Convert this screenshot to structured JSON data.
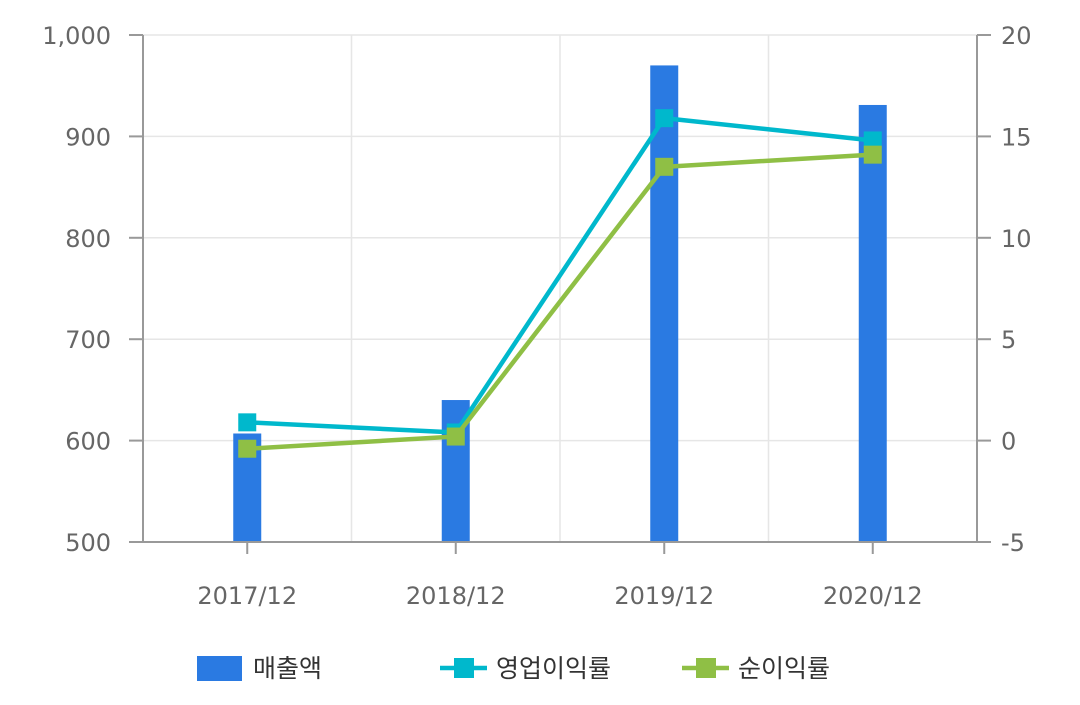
{
  "chart_data": {
    "type": "bar",
    "categories": [
      "2017/12",
      "2018/12",
      "2019/12",
      "2020/12"
    ],
    "series": [
      {
        "name": "매출액",
        "type": "bar",
        "axis": "left",
        "color": "#2a7ae2",
        "values": [
          607,
          640,
          970,
          931
        ]
      },
      {
        "name": "영업이익률",
        "type": "line",
        "axis": "right",
        "color": "#00b8cc",
        "values": [
          0.9,
          0.4,
          15.9,
          14.8
        ]
      },
      {
        "name": "순이익률",
        "type": "line",
        "axis": "right",
        "color": "#8fbf45",
        "values": [
          -0.4,
          0.2,
          13.5,
          14.1
        ]
      }
    ],
    "y_left": {
      "min": 500,
      "max": 1000,
      "ticks": [
        "500",
        "600",
        "700",
        "800",
        "900",
        "1,000"
      ]
    },
    "y_right": {
      "min": -5,
      "max": 20,
      "ticks": [
        "-5",
        "0",
        "5",
        "10",
        "15",
        "20"
      ]
    },
    "grid": true,
    "legend": "bottom"
  }
}
